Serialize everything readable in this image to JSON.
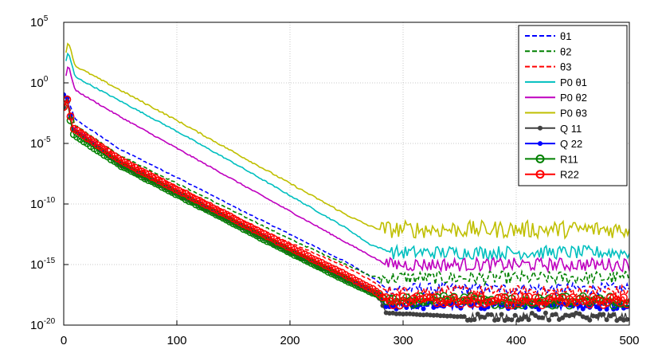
{
  "chart_data": {
    "type": "line",
    "title": "",
    "xlabel": "",
    "ylabel": "",
    "xlim": [
      0,
      500
    ],
    "ylim_log10": [
      -20,
      5
    ],
    "yscale": "log",
    "grid": true,
    "legend_position": "top-right",
    "x_ticks": [
      "0",
      "100",
      "200",
      "300",
      "400",
      "500"
    ],
    "y_ticks": [
      {
        "base": "10",
        "exp": "5"
      },
      {
        "base": "10",
        "exp": "0"
      },
      {
        "base": "10",
        "exp": "-5"
      },
      {
        "base": "10",
        "exp": "-10"
      },
      {
        "base": "10",
        "exp": "-15"
      },
      {
        "base": "10",
        "exp": "-20"
      }
    ],
    "series": [
      {
        "name": "θ1",
        "color": "#0000ff",
        "style": "dashed",
        "marker": "none",
        "points": [
          [
            0,
            -2
          ],
          [
            3,
            -1.2
          ],
          [
            10,
            -3
          ],
          [
            50,
            -5.5
          ],
          [
            100,
            -7.8
          ],
          [
            150,
            -10.2
          ],
          [
            200,
            -12.5
          ],
          [
            250,
            -14.8
          ],
          [
            275,
            -16.2
          ],
          [
            285,
            -17.0
          ],
          [
            500,
            -17.0
          ]
        ],
        "noise": 0.3
      },
      {
        "name": "θ2",
        "color": "#008000",
        "style": "dashed",
        "marker": "none",
        "points": [
          [
            0,
            -2
          ],
          [
            3,
            -1.5
          ],
          [
            10,
            -3.5
          ],
          [
            50,
            -6
          ],
          [
            100,
            -8.3
          ],
          [
            150,
            -10.6
          ],
          [
            200,
            -12.9
          ],
          [
            250,
            -15
          ],
          [
            270,
            -15.9
          ],
          [
            280,
            -16.1
          ],
          [
            500,
            -16.1
          ]
        ],
        "noise": 0.35
      },
      {
        "name": "θ3",
        "color": "#ff0000",
        "style": "dashed",
        "marker": "none",
        "points": [
          [
            0,
            -2
          ],
          [
            3,
            -1.5
          ],
          [
            10,
            -3.6
          ],
          [
            50,
            -6.3
          ],
          [
            100,
            -8.6
          ],
          [
            150,
            -11
          ],
          [
            200,
            -13.2
          ],
          [
            250,
            -15.2
          ],
          [
            275,
            -16.5
          ],
          [
            285,
            -17.2
          ],
          [
            500,
            -17.2
          ]
        ],
        "noise": 0.3
      },
      {
        "name": "P0 θ1",
        "color": "#00bfbf",
        "style": "solid",
        "marker": "none",
        "points": [
          [
            2,
            1.8
          ],
          [
            4,
            2.6
          ],
          [
            10,
            0.5
          ],
          [
            50,
            -1.5
          ],
          [
            100,
            -4
          ],
          [
            150,
            -6.6
          ],
          [
            200,
            -9.3
          ],
          [
            250,
            -12
          ],
          [
            270,
            -13.3
          ],
          [
            290,
            -14
          ],
          [
            500,
            -14
          ]
        ],
        "noise": 0.35
      },
      {
        "name": "P0 θ2",
        "color": "#bf00bf",
        "style": "solid",
        "marker": "none",
        "points": [
          [
            2,
            0.6
          ],
          [
            4,
            1.5
          ],
          [
            10,
            -0.6
          ],
          [
            50,
            -2.8
          ],
          [
            100,
            -5.4
          ],
          [
            150,
            -8
          ],
          [
            200,
            -10.6
          ],
          [
            250,
            -13.2
          ],
          [
            270,
            -14.2
          ],
          [
            285,
            -15
          ],
          [
            500,
            -15
          ]
        ],
        "noise": 0.35
      },
      {
        "name": "P0 θ3",
        "color": "#bfbf00",
        "style": "solid",
        "marker": "none",
        "points": [
          [
            2,
            2.5
          ],
          [
            4,
            3.5
          ],
          [
            10,
            1.4
          ],
          [
            50,
            -0.6
          ],
          [
            100,
            -3.1
          ],
          [
            150,
            -5.7
          ],
          [
            200,
            -8.3
          ],
          [
            250,
            -10.9
          ],
          [
            270,
            -11.8
          ],
          [
            280,
            -12.1
          ],
          [
            500,
            -12.1
          ]
        ],
        "noise": 0.45
      },
      {
        "name": "Q  11",
        "color": "#404040",
        "style": "solid",
        "marker": "*",
        "points": [
          [
            0,
            -2
          ],
          [
            3,
            -1.5
          ],
          [
            8,
            -3.8
          ],
          [
            50,
            -6.8
          ],
          [
            100,
            -9.2
          ],
          [
            150,
            -11.6
          ],
          [
            200,
            -14
          ],
          [
            250,
            -16.3
          ],
          [
            278,
            -17.6
          ],
          [
            285,
            -19
          ],
          [
            350,
            -19.3
          ],
          [
            500,
            -19.3
          ]
        ],
        "noise": 0.2
      },
      {
        "name": "Q  22",
        "color": "#0000ff",
        "style": "solid",
        "marker": "*",
        "points": [
          [
            0,
            -1
          ],
          [
            3,
            -1.2
          ],
          [
            8,
            -3.8
          ],
          [
            50,
            -6.6
          ],
          [
            100,
            -9
          ],
          [
            150,
            -11.4
          ],
          [
            200,
            -13.8
          ],
          [
            250,
            -16.1
          ],
          [
            278,
            -17.4
          ],
          [
            285,
            -18.4
          ],
          [
            500,
            -18.4
          ]
        ],
        "noise": 0.2
      },
      {
        "name": "R11",
        "color": "#008000",
        "style": "solid",
        "marker": "o",
        "points": [
          [
            0,
            -2
          ],
          [
            3,
            -1.4
          ],
          [
            8,
            -4.2
          ],
          [
            50,
            -6.8
          ],
          [
            100,
            -9.2
          ],
          [
            150,
            -11.6
          ],
          [
            200,
            -14
          ],
          [
            250,
            -16.3
          ],
          [
            278,
            -17.5
          ],
          [
            285,
            -18
          ],
          [
            500,
            -18
          ]
        ],
        "noise": 0.25
      },
      {
        "name": "R22",
        "color": "#ff0000",
        "style": "solid",
        "marker": "o",
        "points": [
          [
            0,
            -2
          ],
          [
            3,
            -1.4
          ],
          [
            8,
            -3.7
          ],
          [
            50,
            -6.4
          ],
          [
            100,
            -8.8
          ],
          [
            150,
            -11.2
          ],
          [
            200,
            -13.6
          ],
          [
            250,
            -15.9
          ],
          [
            278,
            -17.3
          ],
          [
            285,
            -18
          ],
          [
            500,
            -18
          ]
        ],
        "noise": 0.25
      }
    ]
  }
}
